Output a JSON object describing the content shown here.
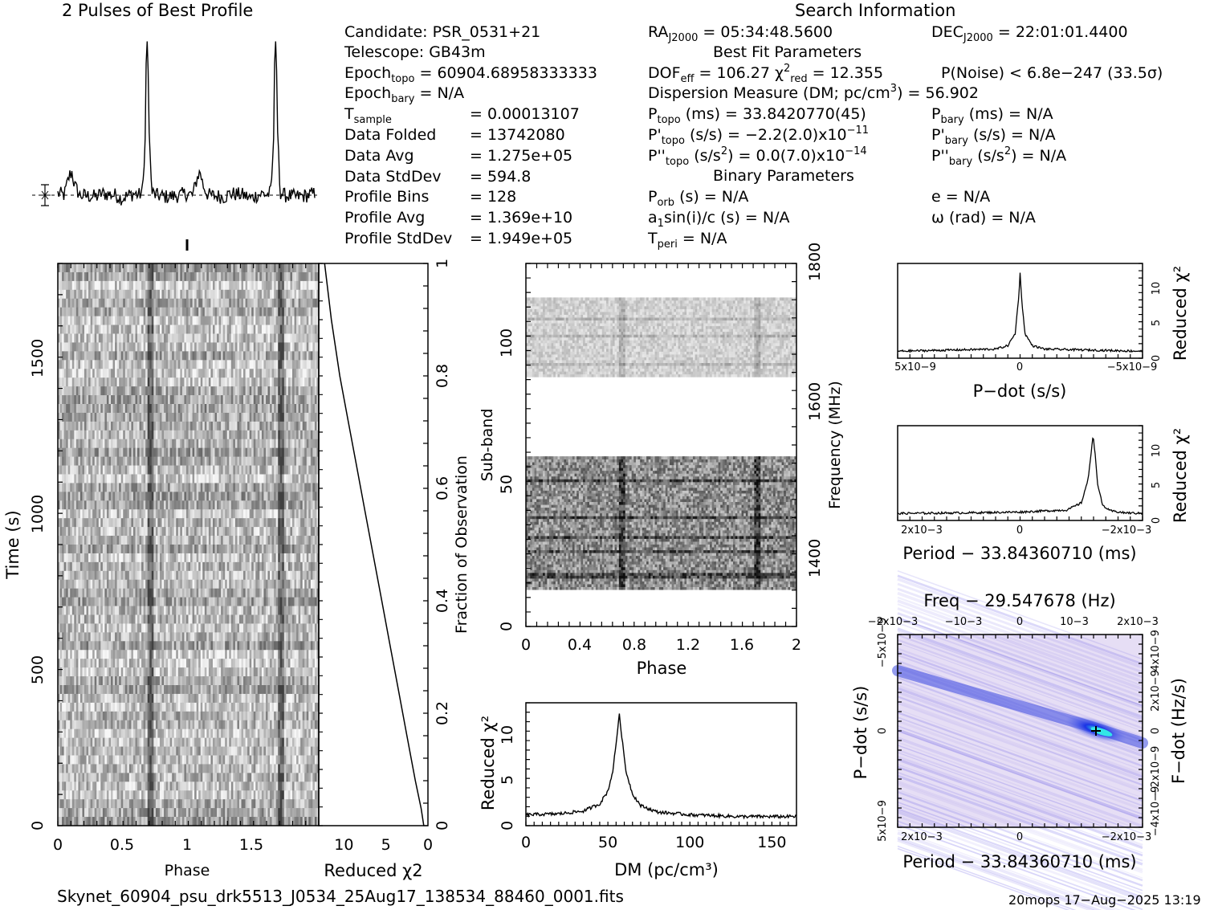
{
  "header": {
    "profile_title": "2 Pulses of Best Profile",
    "search_title": "Search Information",
    "best_fit_title": "Best Fit Parameters",
    "binary_title": "Binary Parameters"
  },
  "info_left": [
    {
      "label": "Candidate:  PSR_0531+21",
      "value": ""
    },
    {
      "label": "Telescope:  GB43m",
      "value": ""
    },
    {
      "label": "Epoch",
      "sub": "topo",
      "rest": " = 60904.68958333333"
    },
    {
      "label": "Epoch",
      "sub": "bary",
      "rest": " = N/A"
    },
    {
      "label": "T",
      "sub": "sample",
      "rest": "",
      "value": "=   0.00013107"
    },
    {
      "label": "Data Folded",
      "value": "=   13742080"
    },
    {
      "label": "Data Avg",
      "value": "=   1.275e+05"
    },
    {
      "label": "Data StdDev",
      "value": "=   594.8"
    },
    {
      "label": "Profile Bins",
      "value": "=   128"
    },
    {
      "label": "Profile Avg",
      "value": "=   1.369e+10"
    },
    {
      "label": "Profile StdDev",
      "value": "=   1.949e+05"
    }
  ],
  "info_mid": {
    "ra": "RA",
    "ra_sub": "J2000",
    "ra_val": " = 05:34:48.5600",
    "dof": "DOF",
    "dof_sub": "eff",
    "dof_val": " = 106.27  ",
    "chi": "χ",
    "chi_sup": "2",
    "chi_sub": "red",
    "chi_val": " = 12.355",
    "dm_text": "Dispersion Measure (DM; pc/cm",
    "dm_sup": "3",
    "dm_val": ") = 56.902",
    "ptopo": "P",
    "ptopo_sub": "topo",
    "ptopo_val": " (ms) =  33.8420770(45)",
    "pdtopo": "P'",
    "pdtopo_sub": "topo",
    "pdtopo_val": " (s/s) = −2.2(2.0)x10",
    "pdtopo_exp": "−11",
    "pddtopo": "P''",
    "pddtopo_sub": "topo",
    "pddtopo_val": " (s/s",
    "pddtopo_sup": "2",
    "pddtopo_val2": ") = 0.0(7.0)x10",
    "pddtopo_exp": "−14",
    "porb": "P",
    "porb_sub": "orb",
    "porb_val": " (s) = N/A",
    "a1": "a",
    "a1_sub": "1",
    "a1_val": "sin(i)/c (s) = N/A",
    "tperi": "T",
    "tperi_sub": "peri",
    "tperi_val": " = N/A"
  },
  "info_right": {
    "dec": "DEC",
    "dec_sub": "J2000",
    "dec_val": " = 22:01:01.4400",
    "pnoise": "P(Noise) < 6.8e−247  (33.5σ)",
    "pbary": "P",
    "pbary_sub": "bary",
    "pbary_val": " (ms) = N/A",
    "pdbary": "P'",
    "pdbary_sub": "bary",
    "pdbary_val": " (s/s) = N/A",
    "pddbary": "P''",
    "pddbary_sub": "bary",
    "pddbary_val": " (s/s",
    "pddbary_sup": "2",
    "pddbary_val2": ") = N/A",
    "ecc": "e = N/A",
    "omega": "ω (rad) = N/A"
  },
  "footer": {
    "filename": "Skynet_60904_psu_drk5513_J0534_25Aug17_138534_88460_0001.fits",
    "stamp": "20mops 17−Aug−2025 13:19"
  },
  "colors": {
    "ink": "#000000",
    "ppdot_base": "#e6def5",
    "ppdot_peak": "#1a33e6",
    "ppdot_center": "#33e6e6"
  },
  "chart_data": [
    {
      "type": "line",
      "name": "profile",
      "title": "2 Pulses of Best Profile",
      "x": [
        0.0,
        0.05,
        0.09,
        0.11,
        0.13,
        0.17,
        0.3,
        0.34,
        0.45,
        0.5,
        0.55,
        0.6,
        0.63,
        0.66,
        0.68,
        0.69,
        0.7,
        0.71,
        0.73,
        0.76,
        0.85,
        0.95,
        1.0,
        1.05,
        1.09,
        1.11,
        1.13,
        1.17,
        1.3,
        1.34,
        1.45,
        1.5,
        1.55,
        1.6,
        1.63,
        1.66,
        1.68,
        1.69,
        1.7,
        1.71,
        1.73,
        1.76,
        1.85,
        1.95,
        2.0
      ],
      "y": [
        0.01,
        0.0,
        0.12,
        0.14,
        0.06,
        0.0,
        -0.01,
        0.01,
        0.0,
        -0.02,
        0.0,
        0.01,
        0.0,
        0.02,
        0.35,
        0.95,
        0.92,
        0.4,
        0.02,
        0.0,
        -0.01,
        0.0,
        0.01,
        0.0,
        0.12,
        0.14,
        0.06,
        0.0,
        -0.01,
        0.01,
        0.0,
        -0.02,
        0.0,
        0.01,
        0.0,
        0.02,
        0.35,
        0.95,
        0.92,
        0.4,
        0.02,
        0.0,
        -0.01,
        0.0,
        0.01
      ]
    },
    {
      "type": "heatmap",
      "name": "time-phase",
      "xlabel": "Phase",
      "ylabel": "Time (s)",
      "xlim": [
        0,
        2
      ],
      "ylim": [
        0,
        1800
      ],
      "xticks": [
        "0",
        "0.5",
        "1",
        "1.5"
      ],
      "yticks": [
        "0",
        "500",
        "1000",
        "1500"
      ],
      "pulse_phases": [
        0.7,
        1.7
      ]
    },
    {
      "type": "line",
      "name": "chi-vs-time",
      "xlabel": "Reduced χ2",
      "ylabel": "Fraction of Observation",
      "xticks": [
        "10",
        "5",
        "0"
      ],
      "yticks": [
        "0",
        "0.2",
        "0.4",
        "0.6",
        "0.8",
        "1"
      ],
      "x": [
        0.5,
        0.8,
        1.5,
        2.5,
        3.5,
        4.5,
        5.5,
        6.5,
        7.5,
        8.5,
        9.5,
        10.5,
        11.5,
        12.3
      ],
      "y": [
        0.0,
        0.03,
        0.08,
        0.16,
        0.24,
        0.32,
        0.4,
        0.48,
        0.56,
        0.64,
        0.72,
        0.8,
        0.9,
        1.0
      ]
    },
    {
      "type": "heatmap",
      "name": "subband-phase",
      "xlabel": "Phase",
      "ylabel": "Sub-band",
      "y2label": "Frequency (MHz)",
      "xlim": [
        0,
        2
      ],
      "ylim": [
        0,
        128
      ],
      "xticks": [
        "0",
        "0.4",
        "0.8",
        "1.2",
        "1.6",
        "2"
      ],
      "yticks": [
        "0",
        "50",
        "100"
      ],
      "y2ticks": [
        "1400",
        "1600",
        "1800"
      ],
      "bands": [
        [
          13,
          60,
          0.85
        ],
        [
          88,
          116,
          0.35
        ]
      ],
      "pulse_phases": [
        0.7,
        1.7
      ]
    },
    {
      "type": "line",
      "name": "dm-chi",
      "xlabel": "DM (pc/cm3)",
      "ylabel": "Reduced χ2",
      "xlim": [
        0,
        165
      ],
      "ylim": [
        0,
        13.5
      ],
      "xticks": [
        "0",
        "50",
        "100",
        "150"
      ],
      "yticks": [
        "0",
        "5",
        "10"
      ],
      "x": [
        0,
        20,
        35,
        45,
        50,
        53,
        55,
        56.9,
        59,
        61,
        65,
        70,
        80,
        100,
        130,
        165
      ],
      "y": [
        1.2,
        1.3,
        1.6,
        2.4,
        3.8,
        6.0,
        9.0,
        12.3,
        9.0,
        6.0,
        3.5,
        2.2,
        1.5,
        1.2,
        1.0,
        1.0
      ]
    },
    {
      "type": "line",
      "name": "pdot-chi",
      "xlabel": "P−dot (s/s)",
      "ylabel": "Reduced χ2",
      "xticks": [
        "5x10−9",
        "0",
        "−5x10−9"
      ],
      "yticks": [
        "0",
        "5",
        "10"
      ],
      "x": [
        -5,
        -1,
        -0.5,
        -0.2,
        -0.05,
        0,
        0.05,
        0.2,
        0.5,
        1,
        5
      ],
      "y": [
        1.0,
        1.3,
        1.8,
        3.5,
        9.0,
        12.3,
        9.0,
        3.5,
        1.8,
        1.3,
        1.0
      ]
    },
    {
      "type": "line",
      "name": "period-chi",
      "xlabel": "Period − 33.84360710 (ms)",
      "ylabel": "Reduced χ2",
      "xticks": [
        "2x10−3",
        "0",
        "−2x10−3"
      ],
      "yticks": [
        "0",
        "5",
        "10"
      ],
      "x": [
        2.6,
        1.0,
        0,
        -1.0,
        -1.3,
        -1.45,
        -1.55,
        -1.6,
        -1.65,
        -1.75,
        -1.9,
        -2.2,
        -2.6
      ],
      "y": [
        1.0,
        1.1,
        1.2,
        1.5,
        2.5,
        6.0,
        12.3,
        9.0,
        5.0,
        2.2,
        1.4,
        1.1,
        1.0
      ]
    },
    {
      "type": "heatmap",
      "name": "period-pdot",
      "title": "Freq − 29.547678 (Hz)",
      "xlabel": "Period − 33.84360710 (ms)",
      "ylabel": "P−dot (s/s)",
      "y2label": "F−dot (Hz/s)",
      "xticks": [
        "2x10−3",
        "0",
        "−2x10−3"
      ],
      "x2ticks": [
        "−2x10−3",
        "−10−3",
        "0",
        "10−3",
        "2x10−3"
      ],
      "yticks": [
        "5x10−9",
        "0",
        "−5x10−9"
      ],
      "y2ticks": [
        "−4x10−9",
        "−2x10−9",
        "0",
        "2x10−9",
        "4x10−9"
      ],
      "best": {
        "period": -1.6,
        "pdot": 0
      }
    }
  ]
}
